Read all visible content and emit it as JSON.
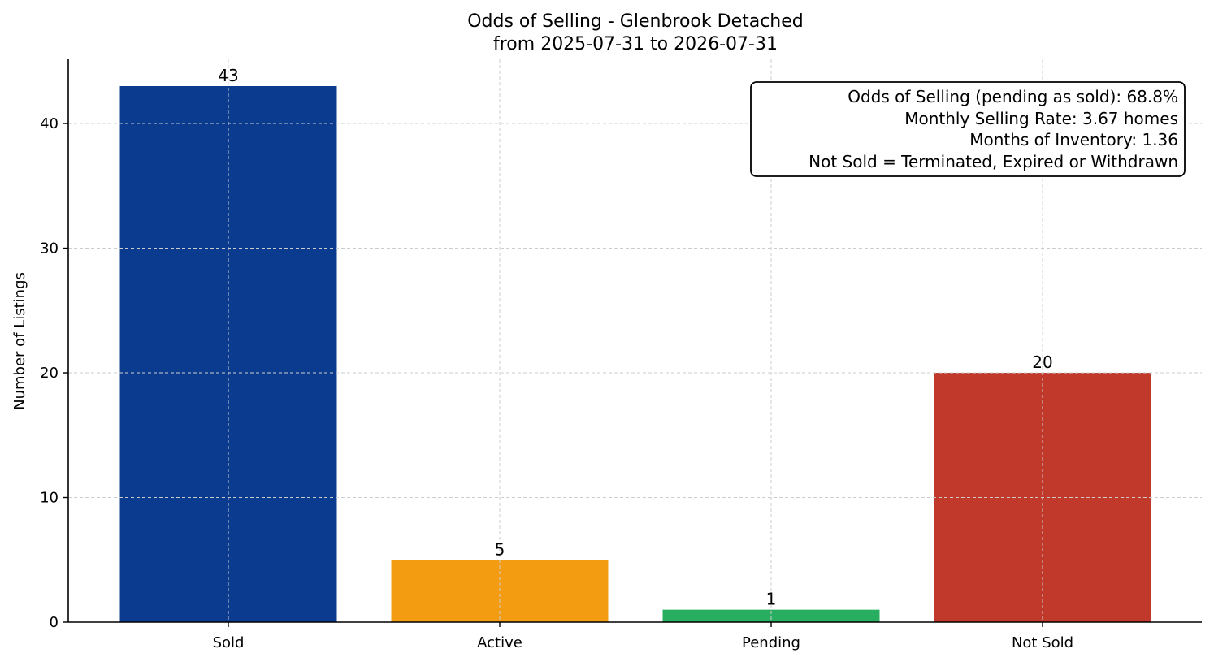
{
  "chart_data": {
    "type": "bar",
    "title": "Odds of Selling - Glenbrook Detached",
    "subtitle": "from 2025-07-31 to 2026-07-31",
    "xlabel": "",
    "ylabel": "Number of Listings",
    "categories": [
      "Sold",
      "Active",
      "Pending",
      "Not Sold"
    ],
    "values": [
      43,
      5,
      1,
      20
    ],
    "colors": [
      "#0b3b8f",
      "#f39c12",
      "#27ae60",
      "#c0392b"
    ],
    "ylim": [
      0,
      45.15
    ],
    "yticks": [
      0,
      10,
      20,
      30,
      40
    ],
    "grid": true,
    "info_box": {
      "position": "top-right",
      "lines": [
        "Odds of Selling (pending as sold): 68.8%",
        "Monthly Selling Rate: 3.67 homes",
        "Months of Inventory: 1.36",
        "Not Sold = Terminated, Expired or Withdrawn"
      ]
    }
  }
}
